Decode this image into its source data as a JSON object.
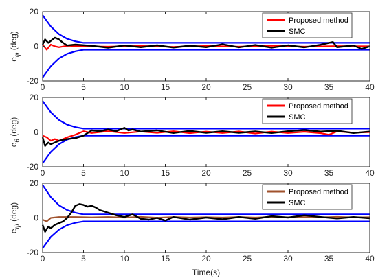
{
  "chart_data": [
    {
      "type": "line",
      "ylabel_main": "e",
      "ylabel_sub": "φ",
      "ylabel_unit": " (deg)",
      "xlim": [
        0,
        40
      ],
      "ylim": [
        -20,
        20
      ],
      "xticks": [
        "0",
        "5",
        "10",
        "15",
        "20",
        "25",
        "30",
        "35",
        "40"
      ],
      "yticks": [
        "20",
        "0",
        "-20"
      ],
      "legend_position": "top-right",
      "bounds": {
        "color": "#0000ff",
        "upper": [
          [
            0,
            18
          ],
          [
            1,
            11.5
          ],
          [
            2,
            7
          ],
          [
            3,
            4.3
          ],
          [
            4,
            2.9
          ],
          [
            5,
            2
          ],
          [
            40,
            2
          ]
        ],
        "lower": [
          [
            0,
            -18
          ],
          [
            1,
            -11.5
          ],
          [
            2,
            -7
          ],
          [
            3,
            -4.3
          ],
          [
            4,
            -2.9
          ],
          [
            5,
            -2
          ],
          [
            40,
            -2
          ]
        ]
      },
      "series": [
        {
          "name": "Proposed method",
          "color": "#ff0000",
          "points": [
            [
              0,
              1
            ],
            [
              0.5,
              -2
            ],
            [
              1,
              1
            ],
            [
              1.5,
              0
            ],
            [
              2,
              -0.5
            ],
            [
              3,
              0.3
            ],
            [
              5,
              0
            ],
            [
              8,
              -0.2
            ],
            [
              12,
              0.2
            ],
            [
              16,
              -0.3
            ],
            [
              20,
              0.2
            ],
            [
              24,
              -0.2
            ],
            [
              28,
              0.3
            ],
            [
              32,
              -0.2
            ],
            [
              36,
              0.1
            ],
            [
              40,
              0
            ]
          ]
        },
        {
          "name": "SMC",
          "color": "#000000",
          "points": [
            [
              0,
              1
            ],
            [
              0.3,
              4
            ],
            [
              0.7,
              2
            ],
            [
              1.5,
              5
            ],
            [
              2,
              4
            ],
            [
              2.5,
              2
            ],
            [
              3,
              0.5
            ],
            [
              4,
              1
            ],
            [
              6,
              0.3
            ],
            [
              8,
              -0.8
            ],
            [
              10,
              0.5
            ],
            [
              12,
              -0.5
            ],
            [
              14,
              0.6
            ],
            [
              16,
              -0.7
            ],
            [
              18,
              0.4
            ],
            [
              20,
              -0.5
            ],
            [
              22,
              1.2
            ],
            [
              24,
              -0.6
            ],
            [
              26,
              0.8
            ],
            [
              28,
              -0.8
            ],
            [
              30,
              0.6
            ],
            [
              32,
              -0.6
            ],
            [
              34,
              0.9
            ],
            [
              35.5,
              2.5
            ],
            [
              36,
              -0.5
            ],
            [
              38,
              0.5
            ],
            [
              39,
              -1.5
            ],
            [
              40,
              0
            ]
          ]
        }
      ]
    },
    {
      "type": "line",
      "ylabel_main": "e",
      "ylabel_sub": "θ",
      "ylabel_unit": " (deg)",
      "xlim": [
        0,
        40
      ],
      "ylim": [
        -20,
        20
      ],
      "xticks": [
        "0",
        "5",
        "10",
        "15",
        "20",
        "25",
        "30",
        "35",
        "40"
      ],
      "yticks": [
        "20",
        "0",
        "-20"
      ],
      "legend_position": "top-right",
      "bounds": {
        "color": "#0000ff",
        "upper": [
          [
            0,
            18
          ],
          [
            1,
            11.5
          ],
          [
            2,
            7
          ],
          [
            3,
            4.3
          ],
          [
            4,
            2.9
          ],
          [
            5,
            2
          ],
          [
            40,
            2
          ]
        ],
        "lower": [
          [
            0,
            -18
          ],
          [
            1,
            -11.5
          ],
          [
            2,
            -7
          ],
          [
            3,
            -4.3
          ],
          [
            4,
            -2.9
          ],
          [
            5,
            -2
          ],
          [
            40,
            -2
          ]
        ]
      },
      "series": [
        {
          "name": "Proposed method",
          "color": "#ff0000",
          "points": [
            [
              0,
              -2
            ],
            [
              0.5,
              -3
            ],
            [
              1,
              -5
            ],
            [
              1.5,
              -4
            ],
            [
              2,
              -5
            ],
            [
              3,
              -3
            ],
            [
              4,
              -1.5
            ],
            [
              5,
              0.5
            ],
            [
              6,
              -0.5
            ],
            [
              8,
              0.5
            ],
            [
              10,
              -0.5
            ],
            [
              12,
              0.3
            ],
            [
              14,
              -0.4
            ],
            [
              16,
              0.5
            ],
            [
              18,
              -0.6
            ],
            [
              20,
              0.3
            ],
            [
              22,
              -0.5
            ],
            [
              24,
              0.4
            ],
            [
              26,
              -0.8
            ],
            [
              28,
              0.3
            ],
            [
              30,
              -0.5
            ],
            [
              32,
              0.2
            ],
            [
              34,
              -0.6
            ],
            [
              35,
              -1.5
            ],
            [
              36,
              0.4
            ],
            [
              38,
              -0.3
            ],
            [
              40,
              0
            ]
          ]
        },
        {
          "name": "SMC",
          "color": "#000000",
          "points": [
            [
              0,
              -3
            ],
            [
              0.3,
              -8
            ],
            [
              0.7,
              -6
            ],
            [
              1,
              -7
            ],
            [
              1.5,
              -6
            ],
            [
              2,
              -5
            ],
            [
              3,
              -4
            ],
            [
              4,
              -3.5
            ],
            [
              5,
              -2
            ],
            [
              6,
              1
            ],
            [
              7,
              0.5
            ],
            [
              8,
              1.5
            ],
            [
              9,
              0.5
            ],
            [
              10,
              2.5
            ],
            [
              10.5,
              1
            ],
            [
              11,
              1.5
            ],
            [
              12,
              0.3
            ],
            [
              14,
              1
            ],
            [
              16,
              -0.5
            ],
            [
              18,
              0.7
            ],
            [
              20,
              -0.4
            ],
            [
              22,
              0.5
            ],
            [
              24,
              -0.4
            ],
            [
              26,
              0.4
            ],
            [
              28,
              -0.5
            ],
            [
              30,
              0.5
            ],
            [
              32,
              1.2
            ],
            [
              34,
              0.3
            ],
            [
              36,
              0.8
            ],
            [
              38,
              -0.5
            ],
            [
              40,
              0.3
            ]
          ]
        }
      ]
    },
    {
      "type": "line",
      "ylabel_main": "e",
      "ylabel_sub": "ψ",
      "ylabel_unit": " (deg)",
      "xlabel": "Time(s)",
      "xlim": [
        0,
        40
      ],
      "ylim": [
        -20,
        20
      ],
      "xticks": [
        "0",
        "5",
        "10",
        "15",
        "20",
        "25",
        "30",
        "35",
        "40"
      ],
      "yticks": [
        "20",
        "0",
        "-20"
      ],
      "legend_position": "top-right",
      "bounds": {
        "color": "#0000ff",
        "upper": [
          [
            0,
            19
          ],
          [
            1,
            12
          ],
          [
            2,
            7.3
          ],
          [
            3,
            4.5
          ],
          [
            4,
            3
          ],
          [
            5,
            2
          ],
          [
            40,
            2
          ]
        ],
        "lower": [
          [
            0,
            -17.5
          ],
          [
            1,
            -11
          ],
          [
            2,
            -6.8
          ],
          [
            3,
            -4.2
          ],
          [
            4,
            -2.8
          ],
          [
            5,
            -2
          ],
          [
            40,
            -2
          ]
        ]
      },
      "series": [
        {
          "name": "Proposed method",
          "color": "#a0522d",
          "points": [
            [
              0,
              -1
            ],
            [
              0.5,
              -2
            ],
            [
              1,
              0
            ],
            [
              2,
              0.5
            ],
            [
              4,
              0.5
            ],
            [
              6,
              0.3
            ],
            [
              8,
              0.5
            ],
            [
              10,
              0.2
            ],
            [
              12,
              0.6
            ],
            [
              14,
              0.1
            ],
            [
              16,
              0.5
            ],
            [
              18,
              0.2
            ],
            [
              20,
              0.4
            ],
            [
              22,
              0.2
            ],
            [
              24,
              0.5
            ],
            [
              26,
              0.2
            ],
            [
              28,
              0.6
            ],
            [
              30,
              0.3
            ],
            [
              32,
              0.5
            ],
            [
              34,
              0.3
            ],
            [
              36,
              0.6
            ],
            [
              38,
              0.3
            ],
            [
              40,
              0.4
            ]
          ]
        },
        {
          "name": "SMC",
          "color": "#000000",
          "points": [
            [
              0,
              -4
            ],
            [
              0.3,
              -8
            ],
            [
              0.7,
              -5
            ],
            [
              1,
              -6
            ],
            [
              1.5,
              -4
            ],
            [
              2,
              -3
            ],
            [
              2.5,
              -2
            ],
            [
              3,
              0
            ],
            [
              3.5,
              3
            ],
            [
              4,
              7
            ],
            [
              4.5,
              8
            ],
            [
              5,
              7.5
            ],
            [
              5.5,
              6.5
            ],
            [
              6,
              7
            ],
            [
              6.5,
              6
            ],
            [
              7,
              4.5
            ],
            [
              8,
              3
            ],
            [
              9,
              1.5
            ],
            [
              10,
              0.5
            ],
            [
              11,
              2
            ],
            [
              12,
              -0.5
            ],
            [
              13,
              -1
            ],
            [
              14,
              0
            ],
            [
              15,
              -1.5
            ],
            [
              16,
              0.5
            ],
            [
              18,
              -1
            ],
            [
              20,
              0.2
            ],
            [
              22,
              -0.8
            ],
            [
              24,
              0.5
            ],
            [
              26,
              -0.5
            ],
            [
              28,
              1
            ],
            [
              30,
              0.2
            ],
            [
              32,
              1.5
            ],
            [
              34,
              0.5
            ],
            [
              36,
              -0.3
            ],
            [
              38,
              0.5
            ],
            [
              40,
              -0.2
            ]
          ]
        }
      ]
    }
  ]
}
